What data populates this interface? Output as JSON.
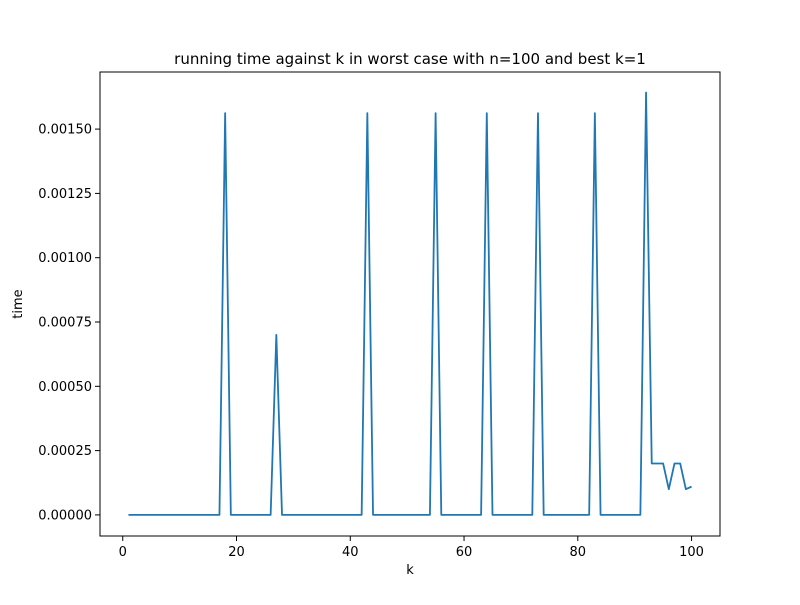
{
  "chart_data": {
    "type": "line",
    "title": "running time against k in worst case with n=100 and best k=1",
    "xlabel": "k",
    "ylabel": "time",
    "xlim": [
      -4,
      105
    ],
    "ylim": [
      -8.2e-05,
      0.001722
    ],
    "xticks": [
      0,
      20,
      40,
      60,
      80,
      100
    ],
    "xtick_labels": [
      "0",
      "20",
      "40",
      "60",
      "80",
      "100"
    ],
    "yticks": [
      0.0,
      0.00025,
      0.0005,
      0.00075,
      0.001,
      0.00125,
      0.0015
    ],
    "ytick_labels": [
      "0.00000",
      "0.00025",
      "0.00050",
      "0.00075",
      "0.00100",
      "0.00125",
      "0.00150"
    ],
    "grid": false,
    "series": [
      {
        "color": "#1f77b4",
        "x": [
          1,
          2,
          3,
          4,
          5,
          6,
          7,
          8,
          9,
          10,
          11,
          12,
          13,
          14,
          15,
          16,
          17,
          18,
          19,
          20,
          21,
          22,
          23,
          24,
          25,
          26,
          27,
          28,
          29,
          30,
          31,
          32,
          33,
          34,
          35,
          36,
          37,
          38,
          39,
          40,
          41,
          42,
          43,
          44,
          45,
          46,
          47,
          48,
          49,
          50,
          51,
          52,
          53,
          54,
          55,
          56,
          57,
          58,
          59,
          60,
          61,
          62,
          63,
          64,
          65,
          66,
          67,
          68,
          69,
          70,
          71,
          72,
          73,
          74,
          75,
          76,
          77,
          78,
          79,
          80,
          81,
          82,
          83,
          84,
          85,
          86,
          87,
          88,
          89,
          90,
          91,
          92,
          93,
          94,
          95,
          96,
          97,
          98,
          99,
          100
        ],
        "y": [
          0,
          0,
          0,
          0,
          0,
          0,
          0,
          0,
          0,
          0,
          0,
          0,
          0,
          0,
          0,
          0,
          0,
          0.001562,
          0,
          0,
          0,
          0,
          0,
          0,
          0,
          0,
          0.0007,
          0,
          0,
          0,
          0,
          0,
          0,
          0,
          0,
          0,
          0,
          0,
          0,
          0,
          0,
          0,
          0.001562,
          0,
          0,
          0,
          0,
          0,
          0,
          0,
          0,
          0,
          0,
          0,
          0.001562,
          0,
          0,
          0,
          0,
          0,
          0,
          0,
          0,
          0.001562,
          0,
          0,
          0,
          0,
          0,
          0,
          0,
          0,
          0.001562,
          0,
          0,
          0,
          0,
          0,
          0,
          0,
          0,
          0,
          0.001562,
          0,
          0,
          0,
          0,
          0,
          0,
          0,
          0,
          0.001642,
          0.0002,
          0.0002,
          0.0002,
          0.0001,
          0.0002,
          0.0002,
          0.0001,
          0.00011
        ]
      }
    ]
  }
}
